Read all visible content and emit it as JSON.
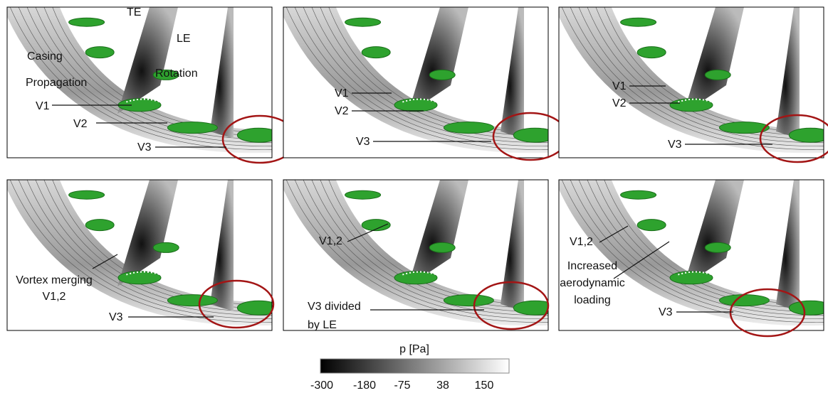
{
  "panels": [
    {
      "labels": [
        "TE",
        "LE",
        "Casing",
        "Rotation",
        "Propagation",
        "V1",
        "V2",
        "V3"
      ]
    },
    {
      "labels": [
        "V1",
        "V2",
        "V3"
      ]
    },
    {
      "labels": [
        "V1",
        "V2",
        "V3"
      ]
    },
    {
      "labels": [
        "Vortex merging",
        "V1,2",
        "V3"
      ]
    },
    {
      "labels": [
        "V1,2",
        "V3 divided",
        "by LE"
      ]
    },
    {
      "labels": [
        "V1,2",
        "Increased",
        "aerodynamic",
        "loading",
        "V3"
      ]
    }
  ],
  "colorbar": {
    "title": "p [Pa]",
    "ticks": [
      -300,
      -180,
      -75,
      38,
      150
    ]
  }
}
